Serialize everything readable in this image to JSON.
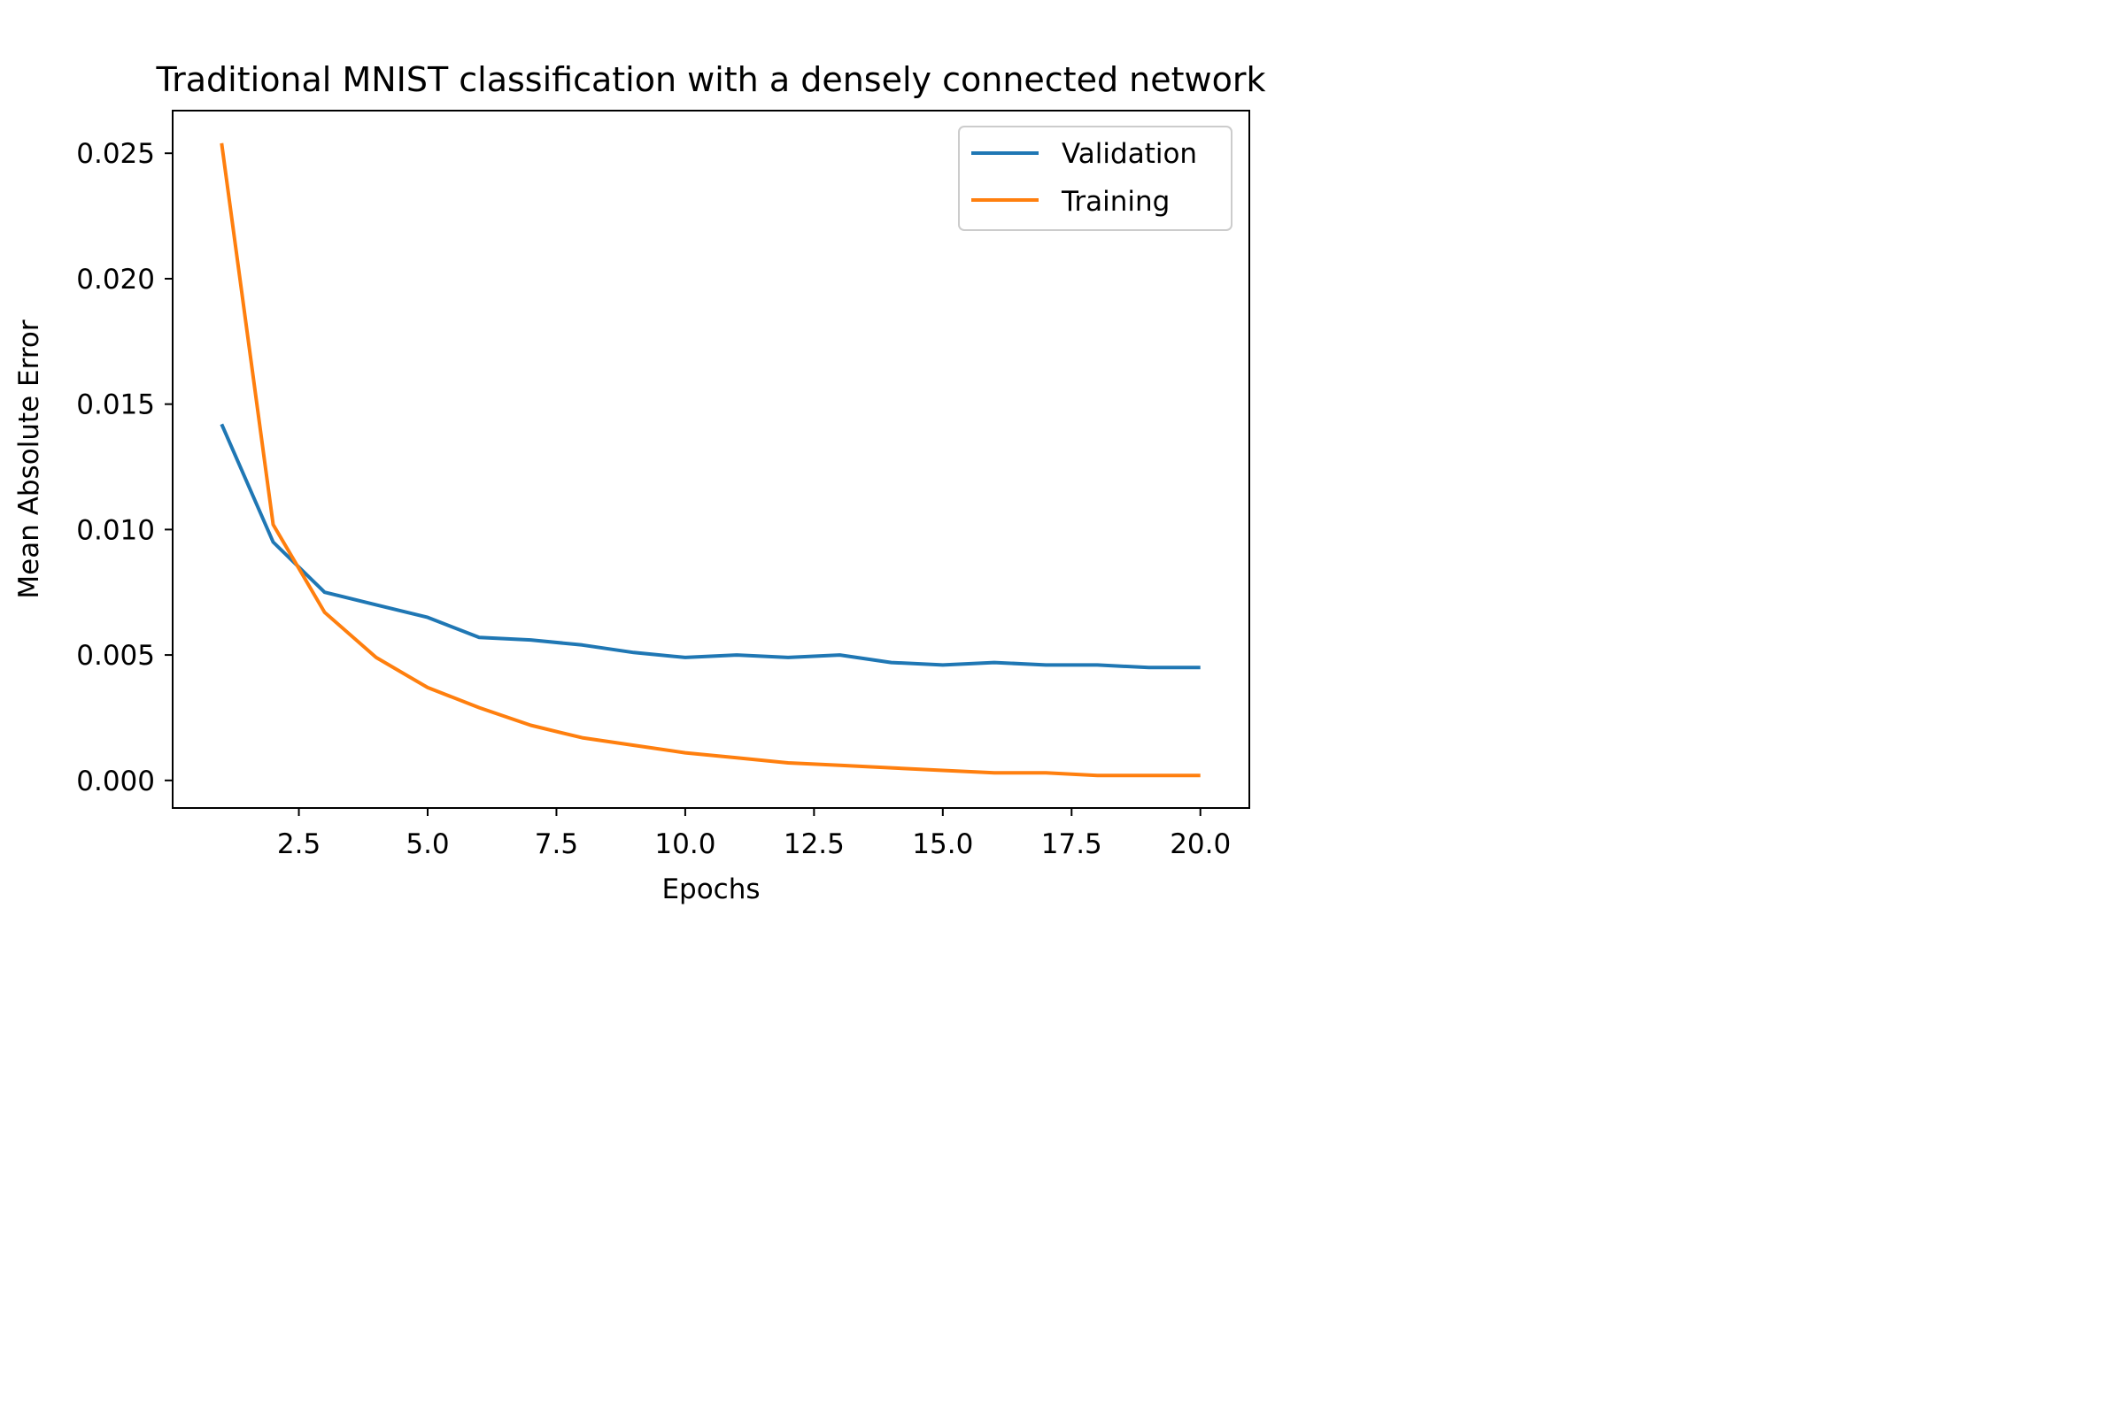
{
  "chart_data": {
    "type": "line",
    "title": "Traditional MNIST classification with a densely connected network",
    "xlabel": "Epochs",
    "ylabel": "Mean Absolute Error",
    "xlim": [
      0.05,
      20.95
    ],
    "ylim": [
      -0.0011,
      0.0267
    ],
    "xticks": [
      2.5,
      5.0,
      7.5,
      10.0,
      12.5,
      15.0,
      17.5,
      20.0
    ],
    "xtick_labels": [
      "2.5",
      "5.0",
      "7.5",
      "10.0",
      "12.5",
      "15.0",
      "17.5",
      "20.0"
    ],
    "yticks": [
      0.0,
      0.005,
      0.01,
      0.015,
      0.02,
      0.025
    ],
    "ytick_labels": [
      "0.000",
      "0.005",
      "0.010",
      "0.015",
      "0.020",
      "0.025"
    ],
    "grid": false,
    "legend_position": "top-right",
    "x": [
      1,
      2,
      3,
      4,
      5,
      6,
      7,
      8,
      9,
      10,
      11,
      12,
      13,
      14,
      15,
      16,
      17,
      18,
      19,
      20
    ],
    "series": [
      {
        "name": "Validation",
        "color": "#1f77b4",
        "values": [
          0.0142,
          0.0095,
          0.0075,
          0.007,
          0.0065,
          0.0057,
          0.0056,
          0.0054,
          0.0051,
          0.0049,
          0.005,
          0.0049,
          0.005,
          0.0047,
          0.0046,
          0.0047,
          0.0046,
          0.0046,
          0.0045,
          0.0045
        ]
      },
      {
        "name": "Training",
        "color": "#ff7f0e",
        "values": [
          0.0254,
          0.0102,
          0.0067,
          0.0049,
          0.0037,
          0.0029,
          0.0022,
          0.0017,
          0.0014,
          0.0011,
          0.0009,
          0.0007,
          0.0006,
          0.0005,
          0.0004,
          0.0003,
          0.0003,
          0.0002,
          0.0002,
          0.0002
        ]
      }
    ]
  }
}
